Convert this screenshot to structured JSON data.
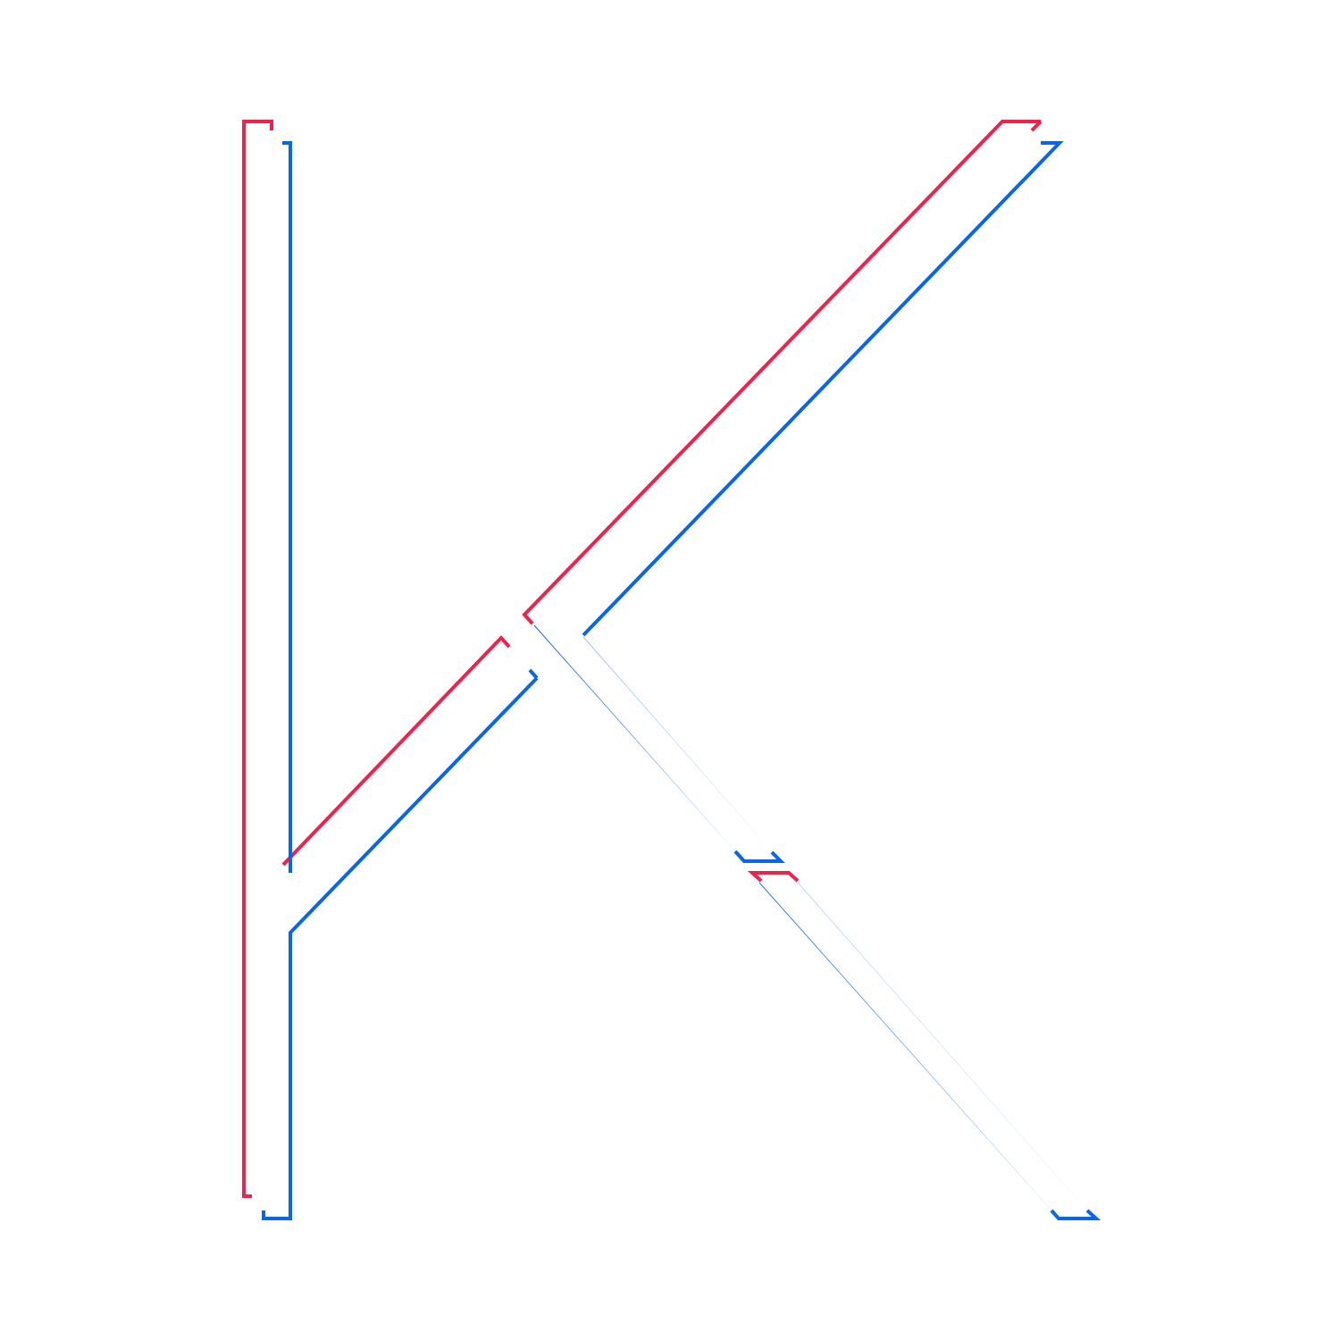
{
  "artwork": {
    "glyph": "K",
    "style": "offset outline",
    "colors": {
      "background": "#ffffff",
      "red_outline": "#f0214b",
      "blue_outline": "#0866ee"
    }
  }
}
